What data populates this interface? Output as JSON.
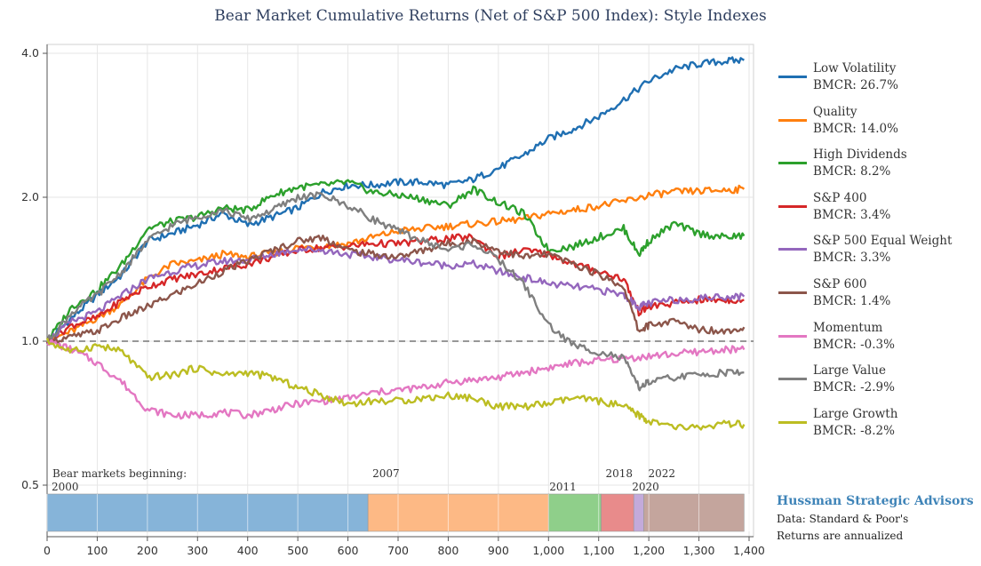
{
  "colors": {
    "low_volatility": "#1f6fb2",
    "quality": "#ff7f0e",
    "high_dividends": "#2ca02c",
    "sp400": "#d62728",
    "sp500_equal_weight": "#9467bd",
    "sp600": "#8c564b",
    "momentum": "#e377c2",
    "large_value": "#7f7f7f",
    "large_growth": "#bcbd22"
  },
  "credit": {
    "brand": "Hussman Strategic Advisors",
    "source": "Data: Standard & Poor's",
    "note": "Returns are annualized"
  },
  "chart_data": {
    "type": "line",
    "title": "Bear Market Cumulative Returns (Net of S&P 500 Index): Style Indexes",
    "xlabel": "",
    "ylabel": "",
    "x_range": [
      0,
      1390
    ],
    "ylim": [
      0.5,
      4.0
    ],
    "y_scale": "log",
    "grid": true,
    "legend_position": "right",
    "x_ticks": [
      0,
      100,
      200,
      300,
      400,
      500,
      600,
      700,
      800,
      900,
      1000,
      1100,
      1200,
      1300,
      1400
    ],
    "x_tick_labels": [
      "0",
      "100",
      "200",
      "300",
      "400",
      "500",
      "600",
      "700",
      "800",
      "900",
      "1,000",
      "1,100",
      "1,200",
      "1,300",
      "1,400"
    ],
    "y_ticks": [
      0.5,
      1.0,
      2.0,
      4.0
    ],
    "y_tick_labels": [
      "0.5",
      "1.0",
      "2.0",
      "4.0"
    ],
    "reference_line": {
      "y": 1.0,
      "style": "dashed"
    },
    "bear_markets": {
      "heading": "Bear markets beginning:",
      "periods": [
        {
          "label": "2000",
          "start": 0,
          "end": 640,
          "color": "#86b4d9"
        },
        {
          "label": "2007",
          "start": 640,
          "end": 1000,
          "color": "#fdb985"
        },
        {
          "label": "2011",
          "start": 1000,
          "end": 1105,
          "color": "#8fcf8a"
        },
        {
          "label": "2018",
          "start": 1105,
          "end": 1170,
          "color": "#e88b8b"
        },
        {
          "label": "2020",
          "start": 1170,
          "end": 1190,
          "color": "#c3aadb"
        },
        {
          "label": "2022",
          "start": 1190,
          "end": 1390,
          "color": "#c4a59d"
        }
      ]
    },
    "series": [
      {
        "name": "Low Volatility",
        "bmcr": "BMCR: 26.7%",
        "x": [
          0,
          50,
          100,
          150,
          200,
          250,
          300,
          350,
          400,
          450,
          500,
          550,
          600,
          650,
          700,
          750,
          800,
          850,
          900,
          950,
          1000,
          1050,
          1100,
          1150,
          1200,
          1250,
          1300,
          1350,
          1390
        ],
        "values": [
          1.0,
          1.12,
          1.25,
          1.38,
          1.62,
          1.68,
          1.75,
          1.85,
          1.75,
          1.82,
          1.9,
          2.05,
          2.12,
          2.12,
          2.15,
          2.15,
          2.12,
          2.18,
          2.3,
          2.45,
          2.65,
          2.78,
          2.95,
          3.2,
          3.5,
          3.7,
          3.8,
          3.85,
          3.87
        ]
      },
      {
        "name": "Quality",
        "bmcr": "BMCR: 14.0%",
        "x": [
          0,
          50,
          100,
          150,
          200,
          250,
          300,
          350,
          400,
          450,
          500,
          550,
          600,
          650,
          700,
          750,
          800,
          850,
          900,
          950,
          1000,
          1050,
          1100,
          1150,
          1200,
          1250,
          1300,
          1350,
          1390
        ],
        "values": [
          1.0,
          1.05,
          1.12,
          1.2,
          1.35,
          1.45,
          1.47,
          1.52,
          1.5,
          1.53,
          1.57,
          1.58,
          1.6,
          1.65,
          1.7,
          1.72,
          1.74,
          1.76,
          1.78,
          1.8,
          1.85,
          1.88,
          1.92,
          1.96,
          2.02,
          2.05,
          2.06,
          2.07,
          2.08
        ]
      },
      {
        "name": "High Dividends",
        "bmcr": "BMCR: 8.2%",
        "x": [
          0,
          50,
          100,
          150,
          200,
          250,
          300,
          350,
          400,
          450,
          500,
          550,
          600,
          650,
          700,
          750,
          800,
          850,
          900,
          950,
          1000,
          1050,
          1100,
          1150,
          1180,
          1200,
          1250,
          1300,
          1350,
          1390
        ],
        "values": [
          1.0,
          1.18,
          1.28,
          1.45,
          1.72,
          1.78,
          1.82,
          1.9,
          1.88,
          2.02,
          2.1,
          2.12,
          2.15,
          2.05,
          2.02,
          1.98,
          1.92,
          2.08,
          1.95,
          1.85,
          1.55,
          1.58,
          1.65,
          1.72,
          1.52,
          1.62,
          1.76,
          1.68,
          1.65,
          1.66
        ]
      },
      {
        "name": "S&P 400",
        "bmcr": "BMCR: 3.4%",
        "x": [
          0,
          50,
          100,
          150,
          200,
          250,
          300,
          350,
          400,
          450,
          500,
          550,
          600,
          650,
          700,
          750,
          800,
          850,
          900,
          950,
          1000,
          1050,
          1100,
          1150,
          1180,
          1200,
          1250,
          1300,
          1350,
          1390
        ],
        "values": [
          1.0,
          1.08,
          1.12,
          1.22,
          1.3,
          1.35,
          1.38,
          1.42,
          1.45,
          1.5,
          1.55,
          1.57,
          1.58,
          1.6,
          1.6,
          1.62,
          1.64,
          1.65,
          1.5,
          1.55,
          1.52,
          1.45,
          1.4,
          1.35,
          1.15,
          1.18,
          1.2,
          1.22,
          1.22,
          1.22
        ]
      },
      {
        "name": "S&P 500 Equal Weight",
        "bmcr": "BMCR: 3.3%",
        "x": [
          0,
          50,
          100,
          150,
          200,
          250,
          300,
          350,
          400,
          450,
          500,
          550,
          600,
          650,
          700,
          750,
          800,
          850,
          900,
          950,
          1000,
          1050,
          1100,
          1150,
          1180,
          1200,
          1250,
          1300,
          1350,
          1390
        ],
        "values": [
          1.0,
          1.1,
          1.15,
          1.25,
          1.35,
          1.4,
          1.44,
          1.47,
          1.48,
          1.52,
          1.56,
          1.55,
          1.52,
          1.5,
          1.48,
          1.46,
          1.44,
          1.45,
          1.4,
          1.36,
          1.32,
          1.3,
          1.28,
          1.25,
          1.18,
          1.2,
          1.22,
          1.23,
          1.24,
          1.24
        ]
      },
      {
        "name": "S&P 600",
        "bmcr": "BMCR: 1.4%",
        "x": [
          0,
          50,
          100,
          150,
          200,
          250,
          300,
          350,
          400,
          450,
          500,
          550,
          600,
          650,
          700,
          750,
          800,
          850,
          900,
          950,
          1000,
          1050,
          1100,
          1150,
          1180,
          1200,
          1250,
          1300,
          1350,
          1390
        ],
        "values": [
          1.0,
          1.02,
          1.05,
          1.12,
          1.18,
          1.25,
          1.32,
          1.4,
          1.47,
          1.55,
          1.62,
          1.65,
          1.55,
          1.52,
          1.5,
          1.55,
          1.6,
          1.62,
          1.55,
          1.5,
          1.52,
          1.45,
          1.38,
          1.3,
          1.05,
          1.08,
          1.1,
          1.06,
          1.05,
          1.07
        ]
      },
      {
        "name": "Momentum",
        "bmcr": "BMCR: -0.3%",
        "x": [
          0,
          50,
          100,
          150,
          200,
          250,
          300,
          350,
          400,
          450,
          500,
          550,
          600,
          650,
          700,
          750,
          800,
          850,
          900,
          950,
          1000,
          1050,
          1100,
          1150,
          1200,
          1250,
          1300,
          1350,
          1390
        ],
        "values": [
          1.0,
          0.96,
          0.9,
          0.82,
          0.72,
          0.7,
          0.7,
          0.71,
          0.7,
          0.72,
          0.74,
          0.75,
          0.76,
          0.78,
          0.79,
          0.8,
          0.82,
          0.83,
          0.84,
          0.86,
          0.88,
          0.9,
          0.91,
          0.92,
          0.93,
          0.94,
          0.95,
          0.96,
          0.96
        ]
      },
      {
        "name": "Large Value",
        "bmcr": "BMCR: -2.9%",
        "x": [
          0,
          50,
          100,
          150,
          200,
          250,
          300,
          350,
          400,
          450,
          500,
          550,
          600,
          650,
          700,
          750,
          800,
          850,
          900,
          950,
          1000,
          1050,
          1100,
          1150,
          1180,
          1200,
          1250,
          1300,
          1350,
          1390
        ],
        "values": [
          1.0,
          1.15,
          1.25,
          1.4,
          1.62,
          1.75,
          1.82,
          1.88,
          1.8,
          1.88,
          2.0,
          2.02,
          1.92,
          1.8,
          1.7,
          1.62,
          1.55,
          1.6,
          1.48,
          1.32,
          1.08,
          0.98,
          0.95,
          0.92,
          0.8,
          0.82,
          0.84,
          0.85,
          0.86,
          0.86
        ]
      },
      {
        "name": "Large Growth",
        "bmcr": "BMCR: -8.2%",
        "x": [
          0,
          50,
          100,
          150,
          200,
          250,
          300,
          350,
          400,
          450,
          500,
          550,
          600,
          650,
          700,
          750,
          800,
          850,
          900,
          950,
          1000,
          1050,
          1100,
          1150,
          1180,
          1200,
          1250,
          1300,
          1350,
          1390
        ],
        "values": [
          1.0,
          0.95,
          0.98,
          0.95,
          0.84,
          0.85,
          0.88,
          0.85,
          0.86,
          0.84,
          0.8,
          0.77,
          0.74,
          0.75,
          0.75,
          0.76,
          0.77,
          0.76,
          0.73,
          0.73,
          0.74,
          0.76,
          0.75,
          0.73,
          0.7,
          0.68,
          0.66,
          0.66,
          0.67,
          0.67
        ]
      }
    ]
  }
}
